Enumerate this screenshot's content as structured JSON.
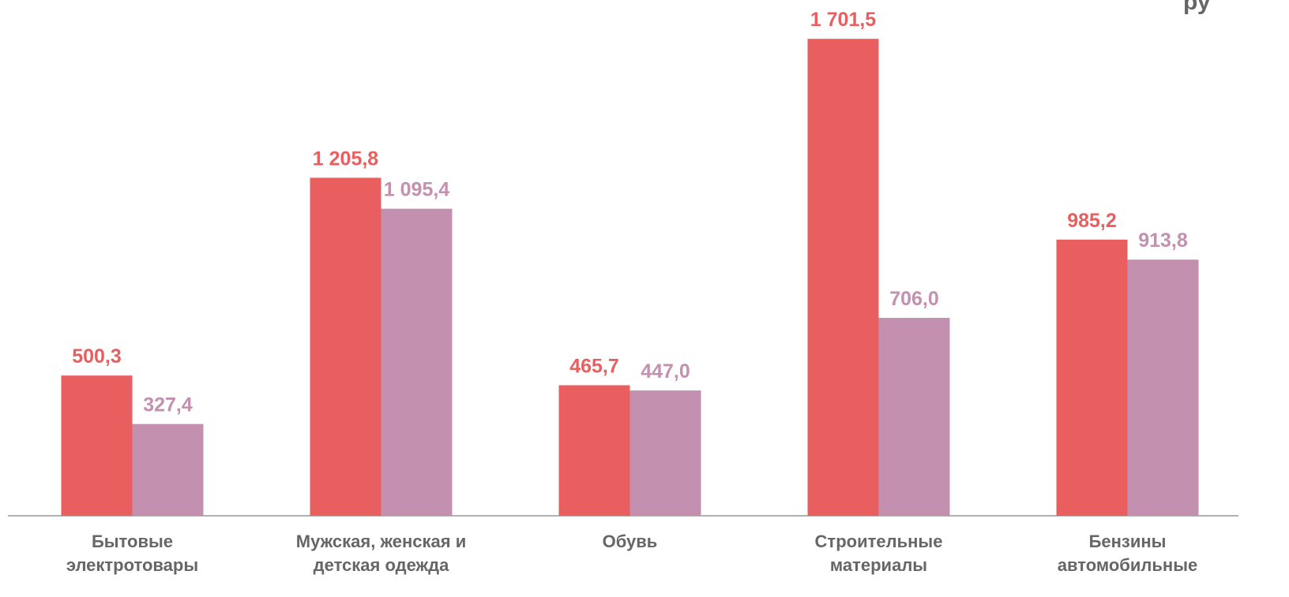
{
  "chart_data": {
    "type": "bar",
    "annotation": "ру",
    "categories": [
      "Бытовые электротовары",
      "Мужская, женская и детская одежда",
      "Обувь",
      "Строительные материалы",
      "Бензины автомобильные"
    ],
    "series": [
      {
        "color": "#e95f60",
        "values": [
          500.3,
          1205.8,
          465.7,
          1701.5,
          985.2
        ],
        "value_labels": [
          "500,3",
          "1 205,8",
          "465,7",
          "1 701,5",
          "985,2"
        ]
      },
      {
        "color": "#c490b0",
        "values": [
          327.4,
          1095.4,
          447.0,
          706.0,
          913.8
        ],
        "value_labels": [
          "327,4",
          "1 095,4",
          "447,0",
          "706,0",
          "913,8"
        ]
      }
    ],
    "ylim": [
      0,
      1840
    ]
  }
}
